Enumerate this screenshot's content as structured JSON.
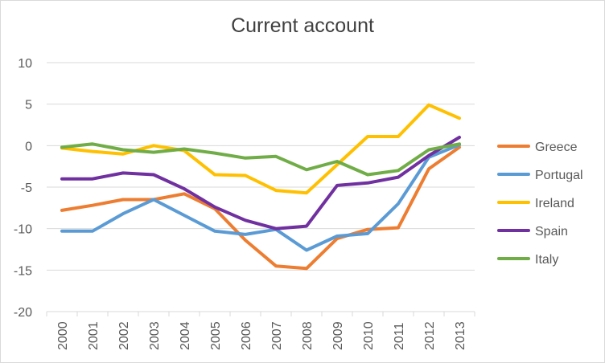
{
  "chart_data": {
    "type": "line",
    "title": "Current account",
    "xlabel": "",
    "ylabel": "",
    "x": [
      "2000",
      "2001",
      "2002",
      "2003",
      "2004",
      "2005",
      "2006",
      "2007",
      "2008",
      "2009",
      "2010",
      "2011",
      "2012",
      "2013"
    ],
    "ylim": [
      -20,
      10
    ],
    "yticks": [
      10,
      5,
      0,
      -5,
      -10,
      -15,
      -20
    ],
    "grid": true,
    "legend_position": "right",
    "series": [
      {
        "name": "Greece",
        "color": "#ED7D31",
        "values": [
          -7.8,
          -7.2,
          -6.5,
          -6.5,
          -5.8,
          -7.6,
          -11.4,
          -14.5,
          -14.8,
          -11.2,
          -10.1,
          -9.9,
          -2.8,
          -0.2
        ]
      },
      {
        "name": "Portugal",
        "color": "#5B9BD5",
        "values": [
          -10.3,
          -10.3,
          -8.2,
          -6.5,
          -8.4,
          -10.3,
          -10.7,
          -10.1,
          -12.6,
          -10.9,
          -10.6,
          -7.0,
          -1.4,
          0.1
        ]
      },
      {
        "name": "Ireland",
        "color": "#FFC000",
        "values": [
          -0.3,
          -0.7,
          -1.0,
          0.0,
          -0.6,
          -3.5,
          -3.6,
          -5.4,
          -5.7,
          -2.3,
          1.1,
          1.1,
          4.9,
          3.3
        ]
      },
      {
        "name": "Spain",
        "color": "#7030A0",
        "values": [
          -4.0,
          -4.0,
          -3.3,
          -3.5,
          -5.2,
          -7.4,
          -9.0,
          -10.0,
          -9.7,
          -4.8,
          -4.5,
          -3.8,
          -1.2,
          1.0
        ]
      },
      {
        "name": "Italy",
        "color": "#70AD47",
        "values": [
          -0.2,
          0.2,
          -0.5,
          -0.8,
          -0.4,
          -0.9,
          -1.5,
          -1.3,
          -2.9,
          -1.9,
          -3.5,
          -3.0,
          -0.5,
          0.2
        ]
      }
    ]
  }
}
